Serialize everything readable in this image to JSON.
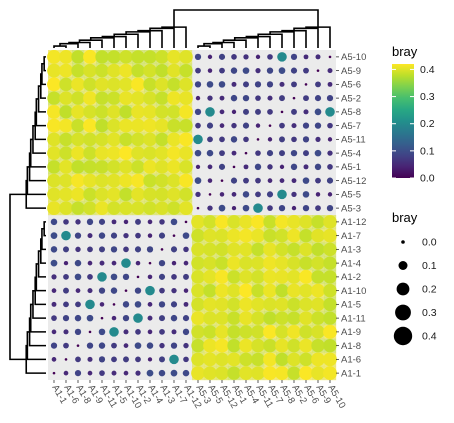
{
  "chart_data": {
    "type": "heatmap",
    "title": "",
    "xlabel": "",
    "ylabel": "",
    "metric": "bray",
    "samples_top_to_bottom": [
      "A5-10",
      "A5-9",
      "A5-6",
      "A5-2",
      "A5-8",
      "A5-7",
      "A5-11",
      "A5-4",
      "A5-1",
      "A5-12",
      "A5-5",
      "A5-3",
      "A1-12",
      "A1-7",
      "A1-3",
      "A1-4",
      "A1-2",
      "A1-10",
      "A1-5",
      "A1-11",
      "A1-9",
      "A1-8",
      "A1-6",
      "A1-1"
    ],
    "samples_left_to_right": [
      "A1-1",
      "A1-6",
      "A1-8",
      "A1-9",
      "A1-11",
      "A1-5",
      "A1-10",
      "A1-2",
      "A1-4",
      "A1-3",
      "A1-7",
      "A1-12",
      "A5-3",
      "A5-5",
      "A5-12",
      "A5-1",
      "A5-4",
      "A5-11",
      "A5-7",
      "A5-8",
      "A5-2",
      "A5-6",
      "A5-9",
      "A5-10"
    ],
    "value_ranges": {
      "between_groups": [
        0.38,
        0.42
      ],
      "within_group": [
        0.04,
        0.1
      ],
      "diagonal": 0.0
    },
    "color_scale": {
      "name": "viridis",
      "range": [
        0,
        0.42
      ],
      "legend_title": "bray",
      "ticks": [
        "0.4",
        "0.3",
        "0.2",
        "0.1",
        "0.0"
      ],
      "tick_values": [
        0.4,
        0.3,
        0.2,
        0.1,
        0.0
      ],
      "colors": [
        "#440154",
        "#3b528b",
        "#21918c",
        "#5ec962",
        "#fde725"
      ]
    },
    "size_scale": {
      "legend_title": "bray",
      "ticks": [
        "0.0",
        "0.1",
        "0.2",
        "0.3",
        "0.4"
      ],
      "tick_values": [
        0.0,
        0.1,
        0.2,
        0.3,
        0.4
      ]
    },
    "dendrograms": [
      "top",
      "left"
    ],
    "legend_position": "right"
  }
}
